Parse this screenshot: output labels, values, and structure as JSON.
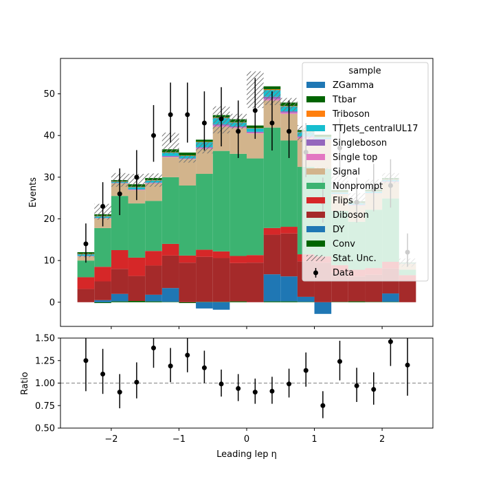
{
  "chart_data": [
    {
      "type": "bar",
      "subtype": "stacked-histogram-with-data-points",
      "xlabel": "",
      "ylabel": "Events",
      "xlim": [
        -2.75,
        2.75
      ],
      "ylim": [
        -5.8,
        58.5
      ],
      "yticks": [
        0,
        10,
        20,
        30,
        40,
        50
      ],
      "xticks": [
        -2,
        -1,
        0,
        1,
        2
      ],
      "bin_edges": [
        -2.5,
        -2.25,
        -2.0,
        -1.75,
        -1.5,
        -1.25,
        -1.0,
        -0.75,
        -0.5,
        -0.25,
        0.0,
        0.25,
        0.5,
        0.75,
        1.0,
        1.25,
        1.5,
        1.75,
        2.0,
        2.25,
        2.5
      ],
      "legend": {
        "title": "sample",
        "position": "top-right"
      },
      "series": [
        {
          "name": "Conv",
          "color": "#006400",
          "values": [
            0.0,
            -0.2,
            0.2,
            0.3,
            0.2,
            0.1,
            -0.2,
            0.1,
            0.1,
            0.2,
            0.0,
            0.2,
            0.2,
            0.1,
            0.0,
            0.1,
            0.2,
            0.1,
            0.1,
            0.0
          ]
        },
        {
          "name": "DY",
          "color": "#1f77b4",
          "values": [
            0.0,
            0.5,
            1.8,
            0.0,
            1.6,
            3.3,
            0.0,
            -1.5,
            -1.8,
            0.0,
            0.0,
            6.5,
            6.0,
            1.2,
            -2.8,
            0.0,
            0.0,
            0.0,
            2.0,
            0.0
          ]
        },
        {
          "name": "Diboson",
          "color": "#a52a2a",
          "values": [
            3.2,
            4.5,
            6.0,
            6.0,
            7.0,
            7.8,
            9.5,
            10.8,
            10.5,
            9.2,
            9.5,
            9.5,
            10.3,
            8.5,
            9.5,
            7.0,
            6.0,
            6.5,
            6.0,
            5.0
          ]
        },
        {
          "name": "Flips",
          "color": "#d62728",
          "values": [
            2.8,
            3.5,
            4.5,
            4.4,
            3.5,
            2.8,
            1.7,
            1.7,
            1.6,
            1.7,
            1.8,
            1.6,
            1.6,
            1.7,
            1.5,
            1.8,
            1.6,
            1.6,
            1.6,
            1.5
          ]
        },
        {
          "name": "Nonprompt",
          "color": "#3cb371",
          "values": [
            4.0,
            9.3,
            13.0,
            13.0,
            12.0,
            16.0,
            16.8,
            18.2,
            24.1,
            24.5,
            23.2,
            24.1,
            20.7,
            21.0,
            21.0,
            13.0,
            11.5,
            14.0,
            15.2,
            1.3
          ]
        },
        {
          "name": "Signal",
          "color": "#d2b48c",
          "values": [
            1.0,
            2.3,
            3.0,
            3.2,
            4.2,
            4.8,
            6.3,
            6.0,
            5.8,
            6.2,
            6.0,
            6.5,
            6.4,
            6.8,
            7.0,
            4.0,
            3.9,
            3.9,
            3.9,
            1.5
          ]
        },
        {
          "name": "Single top",
          "color": "#e377c2",
          "values": [
            0.1,
            0.1,
            0.1,
            0.1,
            0.1,
            0.1,
            0.1,
            0.2,
            0.3,
            0.2,
            0.2,
            0.4,
            0.3,
            0.3,
            0.1,
            0.1,
            0.1,
            0.1,
            0.1,
            0.0
          ]
        },
        {
          "name": "Singleboson",
          "color": "#9467bd",
          "values": [
            0.0,
            0.0,
            0.0,
            0.1,
            0.1,
            0.2,
            0.1,
            0.2,
            0.3,
            0.2,
            0.2,
            0.5,
            0.3,
            0.2,
            0.1,
            0.0,
            0.1,
            0.0,
            0.1,
            0.0
          ]
        },
        {
          "name": "TTJets_centralUL17",
          "color": "#17becf",
          "values": [
            0.4,
            0.4,
            0.3,
            0.5,
            0.5,
            0.8,
            0.6,
            1.2,
            1.5,
            0.9,
            0.8,
            1.6,
            1.2,
            1.0,
            0.4,
            0.4,
            0.4,
            0.4,
            0.4,
            0.1
          ]
        },
        {
          "name": "Triboson",
          "color": "#ff7f0e",
          "values": [
            0.1,
            0.1,
            0.1,
            0.1,
            0.1,
            0.1,
            0.1,
            0.1,
            0.1,
            0.1,
            0.1,
            0.2,
            0.1,
            0.1,
            0.1,
            0.1,
            0.1,
            0.1,
            0.1,
            0.0
          ]
        },
        {
          "name": "Ttbar",
          "color": "#006400",
          "values": [
            0.4,
            0.4,
            0.3,
            0.6,
            0.5,
            0.7,
            0.7,
            0.5,
            0.6,
            0.7,
            0.6,
            0.7,
            0.8,
            0.4,
            0.5,
            0.4,
            0.3,
            0.3,
            0.3,
            0.1
          ]
        },
        {
          "name": "ZGamma",
          "color": "#1f77b4",
          "values": [
            0.0,
            0.0,
            0.0,
            0.0,
            0.0,
            0.0,
            0.0,
            0.0,
            0.0,
            0.0,
            0.0,
            0.0,
            0.0,
            0.0,
            0.0,
            0.0,
            0.0,
            0.0,
            0.0,
            0.0
          ]
        }
      ],
      "stat_unc": {
        "name": "Stat. Unc.",
        "down": [
          10.8,
          19.8,
          27.7,
          27.7,
          27.7,
          35.6,
          33.5,
          35.7,
          40.5,
          41.6,
          46.6,
          47.3,
          45.8,
          38.5,
          30.5,
          27.7,
          23.5,
          27.0,
          28.5,
          8.5
        ],
        "up": [
          11.8,
          23.6,
          31.0,
          30.8,
          30.9,
          40.7,
          35.3,
          38.4,
          47.0,
          45.2,
          55.4,
          51.0,
          49.0,
          42.5,
          32.3,
          30.5,
          26.2,
          29.5,
          31.0,
          10.5
        ]
      },
      "data_points": {
        "name": "Data",
        "x": [
          -2.375,
          -2.125,
          -1.875,
          -1.625,
          -1.375,
          -1.125,
          -0.875,
          -0.625,
          -0.375,
          -0.125,
          0.125,
          0.375,
          0.625,
          0.875,
          1.125,
          1.375,
          1.625,
          1.875,
          2.125,
          2.375
        ],
        "y": [
          14,
          23,
          26,
          30,
          40,
          45,
          45,
          43,
          44,
          41,
          46,
          43,
          41,
          36,
          24,
          37,
          24,
          27,
          28,
          12
        ],
        "err_low": [
          4.5,
          4.8,
          5.1,
          5.5,
          6.3,
          6.7,
          6.7,
          6.6,
          6.6,
          6.4,
          6.8,
          6.6,
          6.4,
          6.0,
          4.9,
          6.1,
          4.9,
          5.2,
          5.3,
          3.5
        ],
        "err_high": [
          4.9,
          5.8,
          6.1,
          6.5,
          7.3,
          7.7,
          7.7,
          7.6,
          7.6,
          7.4,
          7.8,
          7.6,
          7.4,
          7.0,
          5.9,
          7.1,
          5.9,
          6.2,
          6.3,
          4.5
        ]
      }
    },
    {
      "type": "scatter",
      "xlabel": "Leading lep η",
      "ylabel": "Ratio",
      "xlim": [
        -2.75,
        2.75
      ],
      "ylim": [
        0.5,
        1.5
      ],
      "yticks": [
        0.5,
        0.75,
        1.0,
        1.25,
        1.5
      ],
      "ytick_labels": [
        "0.50",
        "0.75",
        "1.00",
        "1.25",
        "1.50"
      ],
      "xticks": [
        -2,
        -1,
        0,
        1,
        2
      ],
      "reference_line": 1.0,
      "x": [
        -2.375,
        -2.125,
        -1.875,
        -1.625,
        -1.375,
        -1.125,
        -0.875,
        -0.625,
        -0.375,
        -0.125,
        0.125,
        0.375,
        0.625,
        0.875,
        1.125,
        1.375,
        1.625,
        1.875,
        2.125,
        2.375
      ],
      "y": [
        1.25,
        1.1,
        0.9,
        1.01,
        1.39,
        1.19,
        1.31,
        1.17,
        0.99,
        0.94,
        0.9,
        0.91,
        0.99,
        1.14,
        0.75,
        1.24,
        0.97,
        0.93,
        1.46,
        1.2
      ],
      "err_low": [
        0.34,
        0.22,
        0.18,
        0.18,
        0.22,
        0.18,
        0.19,
        0.17,
        0.14,
        0.14,
        0.13,
        0.14,
        0.15,
        0.18,
        0.14,
        0.21,
        0.18,
        0.17,
        0.27,
        0.34
      ],
      "err_high": [
        0.34,
        0.28,
        0.2,
        0.22,
        0.24,
        0.2,
        0.21,
        0.19,
        0.16,
        0.16,
        0.15,
        0.16,
        0.17,
        0.2,
        0.16,
        0.23,
        0.2,
        0.19,
        0.29,
        0.36
      ]
    }
  ]
}
